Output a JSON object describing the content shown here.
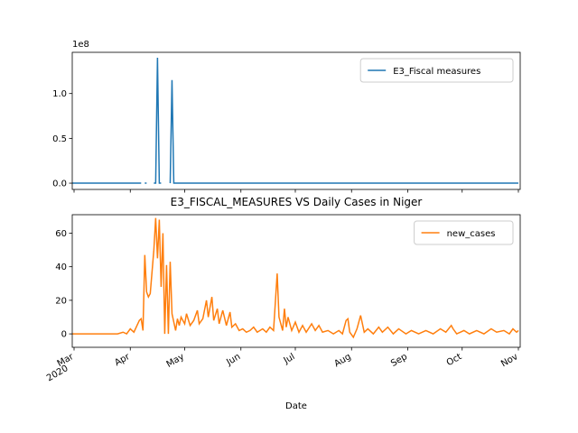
{
  "chart_data": [
    {
      "type": "line",
      "y_offset_label": "1e8",
      "xlim": [
        "2020-02-29",
        "2020-11-02"
      ],
      "ylim": [
        -0.07,
        1.46
      ],
      "yticks": [
        {
          "value": 0,
          "label": "0.0"
        },
        {
          "value": 0.5,
          "label": "0.5"
        },
        {
          "value": 1,
          "label": "1.0"
        }
      ],
      "legend": "upper right",
      "x": [
        "2020-02-29",
        "2020-04-07",
        "2020-04-08",
        "2020-04-09",
        "2020-04-10",
        "2020-04-11",
        "2020-04-14",
        "2020-04-15",
        "2020-04-16",
        "2020-04-17",
        "2020-04-18",
        "2020-04-19",
        "2020-04-23",
        "2020-04-24",
        "2020-04-25",
        "2020-11-01"
      ],
      "series": [
        {
          "name": "E3_Fiscal measures",
          "color": "#1f77b4",
          "values": [
            0,
            0,
            null,
            0,
            0,
            null,
            0,
            0,
            1.4,
            0,
            0,
            null,
            0,
            1.15,
            0,
            0
          ]
        }
      ]
    },
    {
      "type": "line",
      "title": "E3_FISCAL_MEASURES VS Daily Cases in Niger",
      "xlabel": "Date",
      "x_year_label": "2020",
      "xlim": [
        "2020-02-29",
        "2020-11-02"
      ],
      "ylim": [
        -8,
        71
      ],
      "yticks": [
        0,
        20,
        40,
        60
      ],
      "xticks": [
        {
          "value": "2020-03-01",
          "label": "Mar"
        },
        {
          "value": "2020-04-01",
          "label": "Apr"
        },
        {
          "value": "2020-05-01",
          "label": "May"
        },
        {
          "value": "2020-06-01",
          "label": "Jun"
        },
        {
          "value": "2020-07-01",
          "label": "Jul"
        },
        {
          "value": "2020-08-01",
          "label": "Aug"
        },
        {
          "value": "2020-09-01",
          "label": "Sep"
        },
        {
          "value": "2020-10-01",
          "label": "Oct"
        },
        {
          "value": "2020-11-01",
          "label": "Nov"
        }
      ],
      "legend": "upper right",
      "x": [
        "2020-02-29",
        "2020-03-25",
        "2020-03-28",
        "2020-03-30",
        "2020-04-01",
        "2020-04-03",
        "2020-04-06",
        "2020-04-07",
        "2020-04-08",
        "2020-04-09",
        "2020-04-10",
        "2020-04-11",
        "2020-04-12",
        "2020-04-14",
        "2020-04-15",
        "2020-04-16",
        "2020-04-17",
        "2020-04-18",
        "2020-04-19",
        "2020-04-20",
        "2020-04-21",
        "2020-04-22",
        "2020-04-23",
        "2020-04-24",
        "2020-04-26",
        "2020-04-27",
        "2020-04-28",
        "2020-04-29",
        "2020-05-01",
        "2020-05-02",
        "2020-05-04",
        "2020-05-06",
        "2020-05-08",
        "2020-05-09",
        "2020-05-11",
        "2020-05-13",
        "2020-05-14",
        "2020-05-16",
        "2020-05-17",
        "2020-05-19",
        "2020-05-20",
        "2020-05-22",
        "2020-05-24",
        "2020-05-26",
        "2020-05-27",
        "2020-05-29",
        "2020-05-31",
        "2020-06-02",
        "2020-06-04",
        "2020-06-06",
        "2020-06-08",
        "2020-06-10",
        "2020-06-13",
        "2020-06-15",
        "2020-06-17",
        "2020-06-19",
        "2020-06-21",
        "2020-06-22",
        "2020-06-24",
        "2020-06-25",
        "2020-06-26",
        "2020-06-27",
        "2020-06-29",
        "2020-07-01",
        "2020-07-03",
        "2020-07-05",
        "2020-07-07",
        "2020-07-10",
        "2020-07-12",
        "2020-07-14",
        "2020-07-16",
        "2020-07-19",
        "2020-07-22",
        "2020-07-25",
        "2020-07-27",
        "2020-07-29",
        "2020-07-30",
        "2020-07-31",
        "2020-08-02",
        "2020-08-04",
        "2020-08-06",
        "2020-08-08",
        "2020-08-10",
        "2020-08-13",
        "2020-08-16",
        "2020-08-18",
        "2020-08-21",
        "2020-08-24",
        "2020-08-27",
        "2020-08-31",
        "2020-09-03",
        "2020-09-07",
        "2020-09-11",
        "2020-09-15",
        "2020-09-19",
        "2020-09-22",
        "2020-09-25",
        "2020-09-26",
        "2020-09-28",
        "2020-10-02",
        "2020-10-05",
        "2020-10-09",
        "2020-10-13",
        "2020-10-17",
        "2020-10-20",
        "2020-10-24",
        "2020-10-27",
        "2020-10-29",
        "2020-10-31",
        "2020-11-01"
      ],
      "series": [
        {
          "name": "new_cases",
          "color": "#ff7f0e",
          "values": [
            0,
            0,
            1,
            0,
            3,
            1,
            8,
            9,
            2,
            47,
            25,
            22,
            24,
            50,
            69,
            45,
            68,
            28,
            60,
            0,
            41,
            0,
            43,
            12,
            2,
            9,
            5,
            10,
            6,
            12,
            5,
            8,
            14,
            6,
            9,
            20,
            10,
            22,
            8,
            15,
            6,
            14,
            5,
            13,
            4,
            6,
            2,
            3,
            1,
            2,
            4,
            1,
            3,
            1,
            4,
            2,
            36,
            10,
            2,
            15,
            4,
            10,
            2,
            7,
            1,
            5,
            1,
            6,
            2,
            5,
            1,
            2,
            0,
            2,
            0,
            8,
            9,
            1,
            -2,
            3,
            11,
            1,
            3,
            0,
            4,
            1,
            4,
            0,
            3,
            0,
            2,
            0,
            2,
            0,
            3,
            1,
            5,
            3,
            0,
            2,
            0,
            2,
            0,
            3,
            1,
            2,
            0,
            3,
            1,
            2
          ]
        }
      ]
    }
  ]
}
